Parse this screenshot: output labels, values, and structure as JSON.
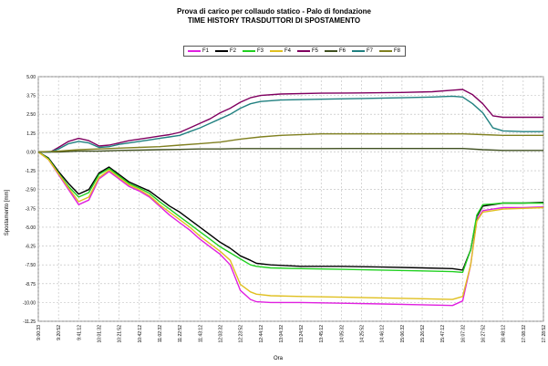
{
  "chart_data": {
    "type": "line",
    "title": "Prova di carico per collaudo statico - Palo di fondazione",
    "subtitle": "TIME HISTORY TRASDUTTORI DI SPOSTAMENTO",
    "xlabel": "Ora",
    "ylabel": "Spostamento [mm]",
    "ylim": [
      -11.25,
      5.0
    ],
    "yticks": [
      "5.00",
      "3.75",
      "2.50",
      "1.25",
      "0.00",
      "-1.25",
      "-2.50",
      "-3.75",
      "-5.00",
      "-6.25",
      "-7.50",
      "-8.75",
      "-10.00",
      "-11.25"
    ],
    "ytick_values": [
      5.0,
      3.75,
      2.5,
      1.25,
      0.0,
      -1.25,
      -2.5,
      -3.75,
      -5.0,
      -6.25,
      -7.5,
      -8.75,
      -10.0,
      -11.25
    ],
    "xticks": [
      "9:00:33",
      "9:20:52",
      "9:41:12",
      "10:01:32",
      "10:21:52",
      "10:42:12",
      "11:02:32",
      "11:22:52",
      "11:43:12",
      "12:03:32",
      "12:23:52",
      "12:44:12",
      "13:04:32",
      "13:24:52",
      "13:45:12",
      "14:05:32",
      "14:25:52",
      "14:46:12",
      "15:06:32",
      "15:26:52",
      "15:47:12",
      "16:07:32",
      "16:27:52",
      "16:48:12",
      "17:08:32",
      "17:28:52"
    ],
    "grid": true,
    "legend_position": "top-center",
    "series": [
      {
        "name": "F1",
        "color": "#e020e0",
        "x": [
          0,
          0.5,
          1.0,
          1.5,
          2.0,
          2.5,
          3.0,
          3.5,
          4.0,
          4.5,
          5.0,
          5.5,
          6.0,
          6.5,
          7.0,
          7.5,
          8.0,
          8.5,
          9.0,
          9.5,
          10.0,
          10.5,
          10.8,
          11.5,
          13.0,
          15.0,
          17.0,
          19.0,
          20.5,
          21.0,
          21.4,
          21.7,
          22.0,
          22.5,
          23.0,
          24.0,
          25.0
        ],
        "y": [
          0,
          -0.5,
          -1.5,
          -2.5,
          -3.5,
          -3.2,
          -1.8,
          -1.3,
          -1.8,
          -2.3,
          -2.6,
          -3.0,
          -3.6,
          -4.2,
          -4.7,
          -5.2,
          -5.8,
          -6.3,
          -6.8,
          -7.5,
          -9.2,
          -9.8,
          -9.95,
          -10.0,
          -10.0,
          -10.05,
          -10.1,
          -10.15,
          -10.2,
          -9.9,
          -7.5,
          -4.5,
          -3.9,
          -3.8,
          -3.7,
          -3.7,
          -3.65
        ]
      },
      {
        "name": "F2",
        "color": "#000000",
        "x": [
          0,
          0.5,
          1.0,
          1.5,
          2.0,
          2.5,
          3.0,
          3.5,
          4.0,
          4.5,
          5.0,
          5.5,
          6.0,
          6.5,
          7.0,
          7.5,
          8.0,
          8.5,
          9.0,
          9.5,
          10.0,
          10.5,
          10.8,
          11.5,
          13.0,
          15.0,
          17.0,
          19.0,
          20.5,
          21.0,
          21.4,
          21.7,
          22.0,
          22.5,
          23.0,
          24.0,
          25.0
        ],
        "y": [
          0,
          -0.4,
          -1.3,
          -2.1,
          -2.8,
          -2.5,
          -1.4,
          -1.0,
          -1.5,
          -2.0,
          -2.3,
          -2.6,
          -3.1,
          -3.6,
          -4.0,
          -4.5,
          -5.0,
          -5.5,
          -6.0,
          -6.4,
          -6.9,
          -7.2,
          -7.4,
          -7.5,
          -7.6,
          -7.6,
          -7.65,
          -7.7,
          -7.75,
          -7.85,
          -6.5,
          -4.3,
          -3.6,
          -3.5,
          -3.4,
          -3.4,
          -3.35
        ]
      },
      {
        "name": "F3",
        "color": "#20d020",
        "x": [
          0,
          0.5,
          1.0,
          1.5,
          2.0,
          2.5,
          3.0,
          3.5,
          4.0,
          4.5,
          5.0,
          5.5,
          6.0,
          6.5,
          7.0,
          7.5,
          8.0,
          8.5,
          9.0,
          9.5,
          10.0,
          10.5,
          10.8,
          11.5,
          13.0,
          15.0,
          17.0,
          19.0,
          20.5,
          21.0,
          21.4,
          21.7,
          22.0,
          22.5,
          23.0,
          24.0,
          25.0
        ],
        "y": [
          0,
          -0.45,
          -1.4,
          -2.3,
          -3.0,
          -2.7,
          -1.5,
          -1.1,
          -1.6,
          -2.1,
          -2.4,
          -2.75,
          -3.3,
          -3.8,
          -4.3,
          -4.8,
          -5.3,
          -5.8,
          -6.3,
          -6.7,
          -7.1,
          -7.5,
          -7.6,
          -7.7,
          -7.75,
          -7.8,
          -7.85,
          -7.9,
          -7.95,
          -8.0,
          -6.5,
          -4.2,
          -3.5,
          -3.45,
          -3.4,
          -3.4,
          -3.4
        ]
      },
      {
        "name": "F4",
        "color": "#e0c020",
        "x": [
          0,
          0.5,
          1.0,
          1.5,
          2.0,
          2.5,
          3.0,
          3.5,
          4.0,
          4.5,
          5.0,
          5.5,
          6.0,
          6.5,
          7.0,
          7.5,
          8.0,
          8.5,
          9.0,
          9.5,
          10.0,
          10.5,
          10.8,
          11.5,
          13.0,
          15.0,
          17.0,
          19.0,
          20.5,
          21.0,
          21.4,
          21.7,
          22.0,
          22.5,
          23.0,
          24.0,
          25.0
        ],
        "y": [
          0,
          -0.5,
          -1.45,
          -2.4,
          -3.3,
          -3.0,
          -1.7,
          -1.2,
          -1.7,
          -2.2,
          -2.5,
          -2.9,
          -3.5,
          -4.0,
          -4.5,
          -5.0,
          -5.6,
          -6.1,
          -6.6,
          -7.2,
          -8.8,
          -9.3,
          -9.45,
          -9.55,
          -9.6,
          -9.65,
          -9.7,
          -9.75,
          -9.8,
          -9.6,
          -7.5,
          -4.6,
          -4.0,
          -3.9,
          -3.8,
          -3.75,
          -3.7
        ]
      },
      {
        "name": "F5",
        "color": "#800060",
        "x": [
          0,
          0.6,
          1.0,
          1.5,
          2.0,
          2.5,
          3.0,
          3.5,
          4.0,
          4.5,
          5.0,
          5.5,
          6.0,
          6.5,
          7.0,
          7.5,
          8.0,
          8.5,
          9.0,
          9.5,
          10.0,
          10.5,
          11.0,
          12.0,
          14.0,
          16.0,
          18.0,
          19.5,
          20.5,
          21.0,
          21.5,
          22.0,
          22.5,
          23.0,
          24.0,
          25.0
        ],
        "y": [
          0,
          0,
          0.3,
          0.7,
          0.9,
          0.75,
          0.4,
          0.45,
          0.6,
          0.75,
          0.85,
          0.95,
          1.05,
          1.15,
          1.3,
          1.6,
          1.9,
          2.2,
          2.6,
          2.9,
          3.3,
          3.6,
          3.75,
          3.85,
          3.9,
          3.92,
          3.95,
          4.0,
          4.1,
          4.15,
          3.8,
          3.2,
          2.4,
          2.3,
          2.3,
          2.3
        ]
      },
      {
        "name": "F6",
        "color": "#405020",
        "x": [
          0,
          1.0,
          2.0,
          3.0,
          4.0,
          5.0,
          6.0,
          7.0,
          8.0,
          9.0,
          10.0,
          11.0,
          12.0,
          14.0,
          16.0,
          18.0,
          20.0,
          21.0,
          22.0,
          23.0,
          24.0,
          25.0
        ],
        "y": [
          0,
          0,
          0.05,
          0.05,
          0.1,
          0.12,
          0.15,
          0.17,
          0.2,
          0.2,
          0.22,
          0.22,
          0.22,
          0.22,
          0.23,
          0.23,
          0.23,
          0.23,
          0.15,
          0.1,
          0.1,
          0.1
        ]
      },
      {
        "name": "F7",
        "color": "#208080",
        "x": [
          0,
          0.6,
          1.0,
          1.5,
          2.0,
          2.5,
          3.0,
          3.5,
          4.0,
          4.5,
          5.0,
          5.5,
          6.0,
          6.5,
          7.0,
          7.5,
          8.0,
          8.5,
          9.0,
          9.5,
          10.0,
          10.5,
          11.0,
          12.0,
          14.0,
          16.0,
          18.0,
          19.5,
          20.5,
          21.0,
          21.5,
          22.0,
          22.5,
          23.0,
          24.0,
          25.0
        ],
        "y": [
          0,
          0,
          0.2,
          0.55,
          0.7,
          0.6,
          0.3,
          0.35,
          0.5,
          0.6,
          0.7,
          0.8,
          0.9,
          1.0,
          1.1,
          1.35,
          1.6,
          1.9,
          2.2,
          2.5,
          2.9,
          3.2,
          3.35,
          3.45,
          3.5,
          3.55,
          3.6,
          3.65,
          3.7,
          3.65,
          3.2,
          2.6,
          1.6,
          1.4,
          1.35,
          1.35
        ]
      },
      {
        "name": "F8",
        "color": "#808020",
        "x": [
          0,
          1.0,
          2.0,
          3.0,
          4.0,
          5.0,
          6.0,
          7.0,
          8.0,
          9.0,
          10.0,
          11.0,
          12.0,
          14.0,
          16.0,
          18.0,
          20.0,
          21.0,
          22.0,
          23.0,
          24.0,
          25.0
        ],
        "y": [
          0,
          0.05,
          0.15,
          0.2,
          0.25,
          0.3,
          0.35,
          0.45,
          0.55,
          0.65,
          0.85,
          1.0,
          1.1,
          1.2,
          1.2,
          1.2,
          1.2,
          1.2,
          1.15,
          1.1,
          1.1,
          1.1
        ]
      }
    ]
  }
}
